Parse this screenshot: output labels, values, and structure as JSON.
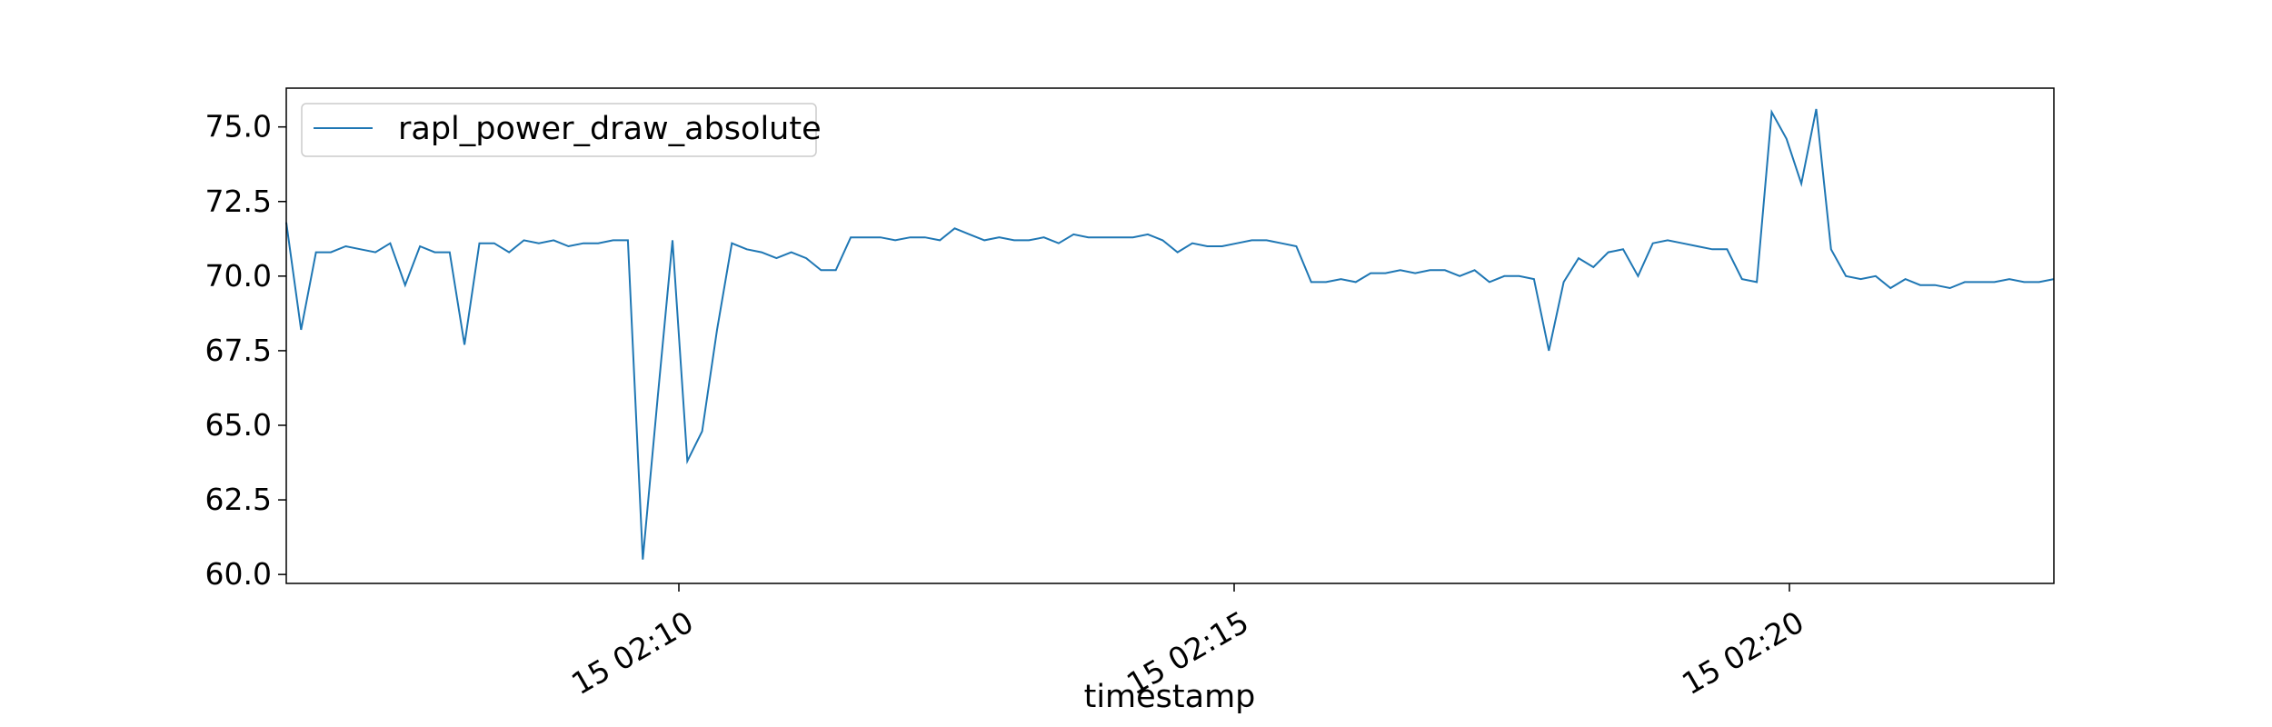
{
  "chart_data": {
    "type": "line",
    "title": "",
    "xlabel": "timestamp",
    "ylabel": "",
    "x_ticks": [
      "15 02:10",
      "15 02:15",
      "15 02:20"
    ],
    "y_ticks": [
      "60.0",
      "62.5",
      "65.0",
      "67.5",
      "70.0",
      "72.5",
      "75.0"
    ],
    "ylim": [
      59.7,
      76.3
    ],
    "legend_position": "upper-left",
    "grid": false,
    "series": [
      {
        "name": "rapl_power_draw_absolute",
        "color": "#1f77b4",
        "values": [
          71.8,
          68.2,
          70.8,
          70.8,
          71.0,
          70.9,
          70.8,
          71.1,
          69.7,
          71.0,
          70.8,
          70.8,
          67.7,
          71.1,
          71.1,
          70.8,
          71.2,
          71.1,
          71.2,
          71.0,
          71.1,
          71.1,
          71.2,
          71.2,
          60.5,
          65.9,
          71.2,
          63.8,
          64.8,
          68.2,
          71.1,
          70.9,
          70.8,
          70.6,
          70.8,
          70.6,
          70.2,
          70.2,
          71.3,
          71.3,
          71.3,
          71.2,
          71.3,
          71.3,
          71.2,
          71.6,
          71.4,
          71.2,
          71.3,
          71.2,
          71.2,
          71.3,
          71.1,
          71.4,
          71.3,
          71.3,
          71.3,
          71.3,
          71.4,
          71.2,
          70.8,
          71.1,
          71.0,
          71.0,
          71.1,
          71.2,
          71.2,
          71.1,
          71.0,
          69.8,
          69.8,
          69.9,
          69.8,
          70.1,
          70.1,
          70.2,
          70.1,
          70.2,
          70.2,
          70.0,
          70.2,
          69.8,
          70.0,
          70.0,
          69.9,
          67.5,
          69.8,
          70.6,
          70.3,
          70.8,
          70.9,
          70.0,
          71.1,
          71.2,
          71.1,
          71.0,
          70.9,
          70.9,
          69.9,
          69.8,
          75.5,
          74.6,
          73.1,
          75.6,
          70.9,
          70.0,
          69.9,
          70.0,
          69.6,
          69.9,
          69.7,
          69.7,
          69.6,
          69.8,
          69.8,
          69.8,
          69.9,
          69.8,
          69.8,
          69.9
        ]
      }
    ]
  }
}
